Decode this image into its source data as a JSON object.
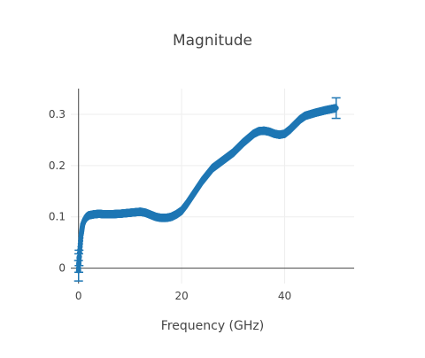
{
  "chart_data": {
    "type": "scatter",
    "title": "Magnitude",
    "xlabel": "Frequency (GHz)",
    "ylabel": "",
    "xlim": [
      -1.5,
      53.5
    ],
    "ylim": [
      -0.03,
      0.35
    ],
    "x_ticks": [
      0,
      20,
      40
    ],
    "y_ticks": [
      0,
      0.1,
      0.2,
      0.3
    ],
    "grid": true,
    "legend": "none",
    "marker_color": "#1f77b4",
    "error_bars": true,
    "series": [
      {
        "curve_x": [
          0,
          0.2,
          0.5,
          0.8,
          1.2,
          1.6,
          2.0,
          3.0,
          4.0,
          5.0,
          6.0,
          8.0,
          10.0,
          12.0,
          13.0,
          14.0,
          15.0,
          16.0,
          17.0,
          18.0,
          19.0,
          20.0,
          21.0,
          22.0,
          24.0,
          26.0,
          28.0,
          30.0,
          32.0,
          34.0,
          35.0,
          36.0,
          37.0,
          38.0,
          39.0,
          40.0,
          41.0,
          42.0,
          43.0,
          44.0,
          46.0,
          48.0,
          49.0,
          50.0
        ],
        "curve_y": [
          0.0,
          0.03,
          0.065,
          0.085,
          0.095,
          0.1,
          0.103,
          0.105,
          0.106,
          0.105,
          0.105,
          0.106,
          0.108,
          0.11,
          0.108,
          0.104,
          0.1,
          0.098,
          0.098,
          0.1,
          0.105,
          0.112,
          0.125,
          0.14,
          0.17,
          0.195,
          0.21,
          0.225,
          0.245,
          0.262,
          0.267,
          0.268,
          0.266,
          0.262,
          0.26,
          0.262,
          0.27,
          0.28,
          0.29,
          0.297,
          0.303,
          0.308,
          0.31,
          0.312
        ],
        "error_half_width": 0.008,
        "error_bar_points": [
          {
            "x": 0,
            "y": -0.005,
            "err": 0.02
          },
          {
            "x": 0.05,
            "y": 0.01,
            "err": 0.018
          },
          {
            "x": 0.1,
            "y": 0.02,
            "err": 0.015
          },
          {
            "x": 50,
            "y": 0.312,
            "err": 0.02
          }
        ]
      }
    ]
  }
}
